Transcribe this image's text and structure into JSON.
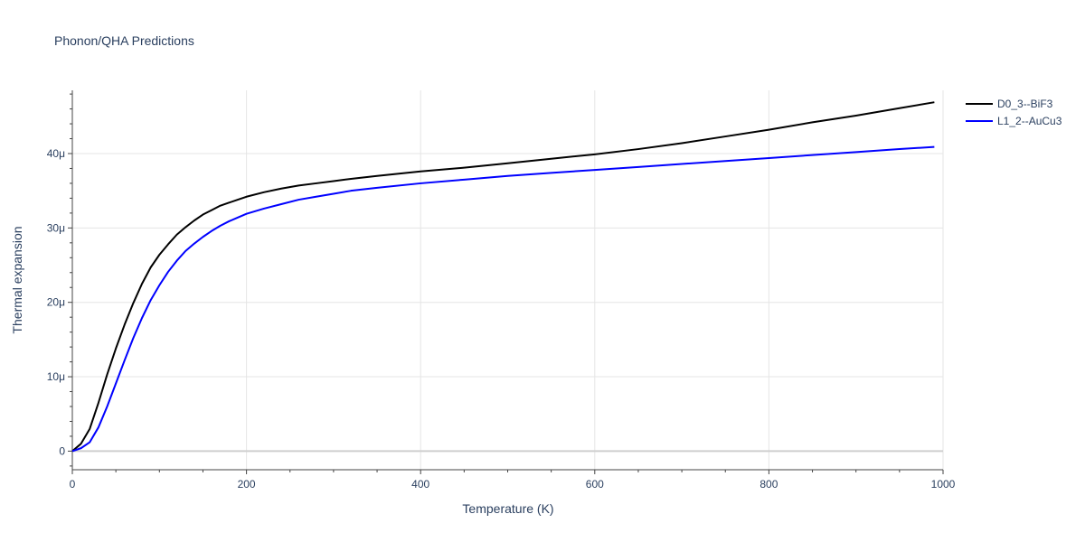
{
  "chart_data": {
    "type": "line",
    "title": "Phonon/QHA Predictions",
    "xlabel": "Temperature (K)",
    "ylabel": "Thermal expansion",
    "xlim": [
      0,
      1000
    ],
    "ylim": [
      -2.5e-06,
      4.85e-05
    ],
    "x_ticks": [
      0,
      200,
      400,
      600,
      800,
      1000
    ],
    "x_tick_labels": [
      "0",
      "200",
      "400",
      "600",
      "800",
      "1000"
    ],
    "y_ticks": [
      0,
      1e-05,
      2e-05,
      3e-05,
      4e-05
    ],
    "y_tick_labels": [
      "0",
      "10μ",
      "20μ",
      "30μ",
      "40μ"
    ],
    "grid": true,
    "legend_position": "top-right",
    "series": [
      {
        "name": "D0_3--BiF3",
        "color": "#000000",
        "x": [
          0,
          10,
          20,
          30,
          40,
          50,
          60,
          70,
          80,
          90,
          100,
          110,
          120,
          130,
          140,
          150,
          160,
          170,
          180,
          190,
          200,
          220,
          240,
          260,
          280,
          300,
          320,
          350,
          400,
          450,
          500,
          550,
          600,
          650,
          700,
          750,
          800,
          850,
          900,
          950,
          990
        ],
        "y": [
          0,
          1e-06,
          3e-06,
          6.5e-06,
          1.03e-05,
          1.38e-05,
          1.7e-05,
          1.99e-05,
          2.25e-05,
          2.47e-05,
          2.64e-05,
          2.78e-05,
          2.91e-05,
          3.01e-05,
          3.1e-05,
          3.18e-05,
          3.24e-05,
          3.3e-05,
          3.34e-05,
          3.38e-05,
          3.42e-05,
          3.48e-05,
          3.53e-05,
          3.57e-05,
          3.6e-05,
          3.63e-05,
          3.66e-05,
          3.7e-05,
          3.76e-05,
          3.81e-05,
          3.87e-05,
          3.93e-05,
          3.99e-05,
          4.06e-05,
          4.14e-05,
          4.23e-05,
          4.32e-05,
          4.42e-05,
          4.51e-05,
          4.61e-05,
          4.69e-05
        ]
      },
      {
        "name": "L1_2--AuCu3",
        "color": "#0000ff",
        "x": [
          0,
          10,
          20,
          30,
          40,
          50,
          60,
          70,
          80,
          90,
          100,
          110,
          120,
          130,
          140,
          150,
          160,
          170,
          180,
          190,
          200,
          220,
          240,
          260,
          280,
          300,
          320,
          350,
          400,
          450,
          500,
          550,
          600,
          650,
          700,
          750,
          800,
          850,
          900,
          950,
          990
        ],
        "y": [
          0,
          4e-07,
          1.2e-06,
          3.2e-06,
          6e-06,
          9.1e-06,
          1.22e-05,
          1.52e-05,
          1.79e-05,
          2.03e-05,
          2.23e-05,
          2.41e-05,
          2.56e-05,
          2.69e-05,
          2.79e-05,
          2.88e-05,
          2.96e-05,
          3.03e-05,
          3.09e-05,
          3.14e-05,
          3.19e-05,
          3.26e-05,
          3.32e-05,
          3.38e-05,
          3.42e-05,
          3.46e-05,
          3.5e-05,
          3.54e-05,
          3.6e-05,
          3.65e-05,
          3.7e-05,
          3.74e-05,
          3.78e-05,
          3.82e-05,
          3.86e-05,
          3.9e-05,
          3.94e-05,
          3.98e-05,
          4.02e-05,
          4.06e-05,
          4.09e-05
        ]
      }
    ]
  }
}
